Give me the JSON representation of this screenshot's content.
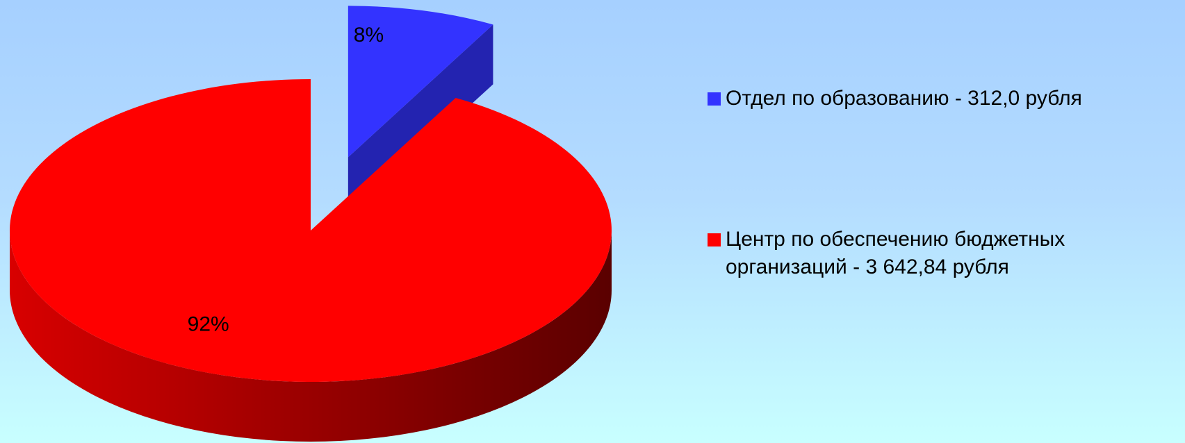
{
  "chart_data": {
    "type": "pie",
    "categories": [
      "Отдел по образованию - 312,0 рубля",
      "Центр по обеспечению бюджетных организаций - 3 642,84 рубля"
    ],
    "values": [
      8,
      92
    ],
    "value_labels": [
      "8%",
      "92%"
    ],
    "colors": [
      "#3333ff",
      "#ff0000"
    ],
    "legend": "right"
  }
}
